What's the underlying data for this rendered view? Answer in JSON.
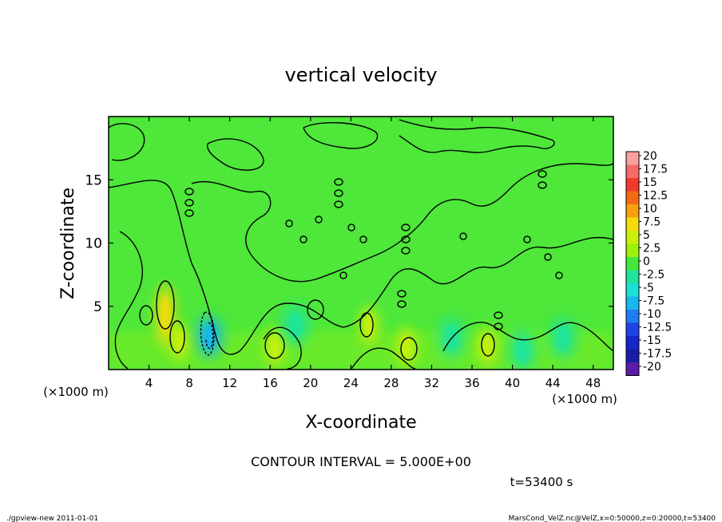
{
  "chart_data": {
    "type": "heatmap",
    "title": "vertical velocity",
    "xlabel": "X-coordinate",
    "ylabel": "Z-coordinate",
    "x_unit": "(×1000 m)",
    "y_unit": "(×1000 m)",
    "xlim": [
      0,
      50
    ],
    "ylim": [
      0,
      20
    ],
    "x_ticks": [
      "4",
      "8",
      "12",
      "16",
      "20",
      "24",
      "28",
      "32",
      "36",
      "40",
      "44",
      "48"
    ],
    "y_ticks": [
      "5",
      "10",
      "15"
    ],
    "contour_interval_label": "CONTOUR INTERVAL = 5.000E+00",
    "time_label": "t=53400 s",
    "colorbar_labels": [
      "20",
      "17.5",
      "15",
      "12.5",
      "10",
      "7.5",
      "5",
      "2.5",
      "0",
      "-2.5",
      "-5",
      "-7.5",
      "-10",
      "-12.5",
      "-15",
      "-17.5",
      "-20"
    ],
    "colorbar_colors": [
      "#f9a0a0",
      "#f76a6a",
      "#f23a2a",
      "#f56b12",
      "#f9a00e",
      "#f5dc0a",
      "#c8f00a",
      "#9cf00c",
      "#42e83a",
      "#1ee49c",
      "#1ce0d6",
      "#19b6f0",
      "#1e7cf2",
      "#1c44e6",
      "#1626c8",
      "#181ca6",
      "#5a1ca6"
    ],
    "features": [
      {
        "kind": "updraft",
        "x": 5.6,
        "z": 4.3,
        "value": 7.5
      },
      {
        "kind": "updraft",
        "x": 7.0,
        "z": 2.2,
        "value": 5
      },
      {
        "kind": "updraft",
        "x": 16.5,
        "z": 1.8,
        "value": 6
      },
      {
        "kind": "updraft",
        "x": 25.8,
        "z": 3.5,
        "value": 5
      },
      {
        "kind": "updraft",
        "x": 29.5,
        "z": 1.8,
        "value": 6
      },
      {
        "kind": "updraft",
        "x": 37.5,
        "z": 1.8,
        "value": 5
      },
      {
        "kind": "downdraft",
        "x": 10.0,
        "z": 2.6,
        "value": -7.5
      },
      {
        "kind": "downdraft",
        "x": 18.5,
        "z": 3.5,
        "value": -3
      },
      {
        "kind": "downdraft",
        "x": 34.0,
        "z": 2.5,
        "value": -3
      },
      {
        "kind": "downdraft",
        "x": 41.0,
        "z": 1.5,
        "value": -3
      },
      {
        "kind": "downdraft",
        "x": 45.0,
        "z": 2.5,
        "value": -3
      }
    ]
  },
  "footer": {
    "left": "./gpview-new  2011-01-01",
    "right": "MarsCond_VelZ.nc@VelZ,x=0:50000,z=0:20000,t=53400"
  }
}
